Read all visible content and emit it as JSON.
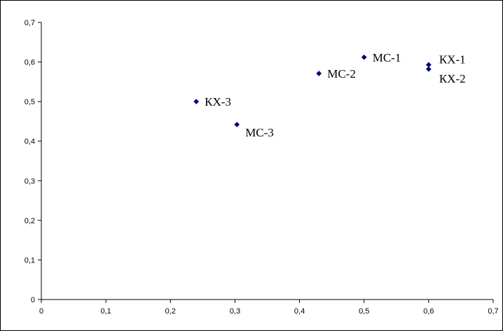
{
  "chart_data": {
    "type": "scatter",
    "title": "",
    "xlabel": "",
    "ylabel": "",
    "xlim": [
      0,
      0.7
    ],
    "ylim": [
      0,
      0.7
    ],
    "x_ticks": [
      "0",
      "0,1",
      "0,2",
      "0,3",
      "0,4",
      "0,5",
      "0,6",
      "0,7"
    ],
    "y_ticks": [
      "0",
      "0,1",
      "0,2",
      "0,3",
      "0,4",
      "0,5",
      "0,6",
      "0,7"
    ],
    "grid": false,
    "legend": "none",
    "marker_color": "#000080",
    "series": [
      {
        "points": [
          {
            "label": "МС-1",
            "x": 0.5,
            "y": 0.612,
            "label_side": "right"
          },
          {
            "label": "МС-2",
            "x": 0.43,
            "y": 0.571,
            "label_side": "right"
          },
          {
            "label": "МС-3",
            "x": 0.303,
            "y": 0.442,
            "label_side": "right-below"
          },
          {
            "label": "КХ-1",
            "x": 0.6,
            "y": 0.593,
            "label_side": "right-above"
          },
          {
            "label": "КХ-2",
            "x": 0.6,
            "y": 0.582,
            "label_side": "right-below"
          },
          {
            "label": "КХ-3",
            "x": 0.24,
            "y": 0.5,
            "label_side": "right"
          }
        ]
      }
    ]
  }
}
